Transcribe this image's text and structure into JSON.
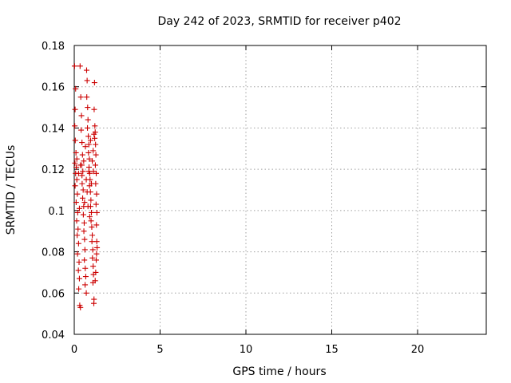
{
  "chart_data": {
    "type": "scatter",
    "title": "Day 242 of 2023, SRMTID for receiver p402",
    "xlabel": "GPS time / hours",
    "ylabel": "SRMTID / TECUs",
    "xlim": [
      0,
      24
    ],
    "ylim": [
      0.04,
      0.18
    ],
    "xticks": [
      0,
      5,
      10,
      15,
      20
    ],
    "xtick_labels": [
      "0",
      "5",
      "10",
      "15",
      "20"
    ],
    "yticks": [
      0.04,
      0.06,
      0.08,
      0.1,
      0.12,
      0.14,
      0.16,
      0.18
    ],
    "ytick_labels": [
      "0.04",
      "0.06",
      "0.08",
      "0.1",
      "0.12",
      "0.14",
      "0.16",
      "0.18"
    ],
    "grid": true,
    "marker": "plus",
    "color": "#cc0000",
    "series": [
      {
        "points": [
          [
            0.02,
            0.17
          ],
          [
            0.08,
            0.159
          ],
          [
            0.05,
            0.149
          ],
          [
            0.03,
            0.141
          ],
          [
            0.06,
            0.134
          ],
          [
            0.1,
            0.128
          ],
          [
            0.04,
            0.123
          ],
          [
            0.12,
            0.121
          ],
          [
            0.08,
            0.118
          ],
          [
            0.15,
            0.115
          ],
          [
            0.05,
            0.112
          ],
          [
            0.18,
            0.108
          ],
          [
            0.11,
            0.104
          ],
          [
            0.2,
            0.099
          ],
          [
            0.14,
            0.095
          ],
          [
            0.22,
            0.091
          ],
          [
            0.17,
            0.088
          ],
          [
            0.25,
            0.084
          ],
          [
            0.19,
            0.079
          ],
          [
            0.28,
            0.075
          ],
          [
            0.24,
            0.071
          ],
          [
            0.3,
            0.067
          ],
          [
            0.26,
            0.062
          ],
          [
            0.32,
            0.054
          ],
          [
            0.36,
            0.053
          ],
          [
            0.34,
            0.17
          ],
          [
            0.38,
            0.155
          ],
          [
            0.42,
            0.146
          ],
          [
            0.4,
            0.139
          ],
          [
            0.45,
            0.133
          ],
          [
            0.48,
            0.127
          ],
          [
            0.44,
            0.122
          ],
          [
            0.5,
            0.119
          ],
          [
            0.46,
            0.113
          ],
          [
            0.52,
            0.11
          ],
          [
            0.49,
            0.106
          ],
          [
            0.55,
            0.102
          ],
          [
            0.53,
            0.098
          ],
          [
            0.58,
            0.094
          ],
          [
            0.56,
            0.09
          ],
          [
            0.6,
            0.086
          ],
          [
            0.62,
            0.081
          ],
          [
            0.59,
            0.076
          ],
          [
            0.64,
            0.072
          ],
          [
            0.67,
            0.068
          ],
          [
            0.63,
            0.064
          ],
          [
            0.7,
            0.06
          ],
          [
            0.72,
            0.168
          ],
          [
            0.75,
            0.163
          ],
          [
            0.73,
            0.155
          ],
          [
            0.78,
            0.15
          ],
          [
            0.8,
            0.144
          ],
          [
            0.77,
            0.14
          ],
          [
            0.82,
            0.136
          ],
          [
            0.85,
            0.132
          ],
          [
            0.83,
            0.128
          ],
          [
            0.88,
            0.125
          ],
          [
            0.86,
            0.121
          ],
          [
            0.9,
            0.118
          ],
          [
            0.92,
            0.115
          ],
          [
            0.89,
            0.112
          ],
          [
            0.94,
            0.109
          ],
          [
            0.97,
            0.105
          ],
          [
            0.95,
            0.102
          ],
          [
            1.0,
            0.099
          ],
          [
            0.98,
            0.095
          ],
          [
            1.02,
            0.092
          ],
          [
            1.05,
            0.088
          ],
          [
            1.03,
            0.085
          ],
          [
            1.08,
            0.081
          ],
          [
            1.06,
            0.077
          ],
          [
            1.1,
            0.073
          ],
          [
            1.12,
            0.069
          ],
          [
            1.09,
            0.065
          ],
          [
            1.15,
            0.057
          ],
          [
            1.14,
            0.055
          ],
          [
            1.18,
            0.162
          ],
          [
            1.16,
            0.149
          ],
          [
            1.2,
            0.141
          ],
          [
            1.22,
            0.138
          ],
          [
            1.19,
            0.135
          ],
          [
            1.24,
            0.132
          ],
          [
            1.26,
            0.127
          ],
          [
            1.23,
            0.122
          ],
          [
            1.28,
            0.118
          ],
          [
            1.25,
            0.113
          ],
          [
            1.3,
            0.108
          ],
          [
            1.27,
            0.103
          ],
          [
            1.32,
            0.099
          ],
          [
            1.29,
            0.093
          ],
          [
            1.31,
            0.085
          ],
          [
            1.33,
            0.082
          ],
          [
            1.3,
            0.079
          ],
          [
            1.28,
            0.076
          ],
          [
            1.25,
            0.07
          ],
          [
            1.22,
            0.066
          ],
          [
            0.15,
            0.125
          ],
          [
            0.25,
            0.118
          ],
          [
            0.35,
            0.122
          ],
          [
            0.65,
            0.131
          ],
          [
            0.7,
            0.115
          ],
          [
            0.75,
            0.109
          ],
          [
            0.85,
            0.119
          ],
          [
            1.05,
            0.124
          ],
          [
            1.1,
            0.129
          ],
          [
            1.15,
            0.137
          ],
          [
            0.95,
            0.134
          ],
          [
            0.55,
            0.124
          ],
          [
            0.45,
            0.117
          ],
          [
            0.3,
            0.101
          ],
          [
            0.6,
            0.104
          ],
          [
            0.9,
            0.097
          ],
          [
            1.0,
            0.113
          ],
          [
            1.12,
            0.119
          ],
          [
            0.8,
            0.102
          ]
        ]
      }
    ]
  }
}
